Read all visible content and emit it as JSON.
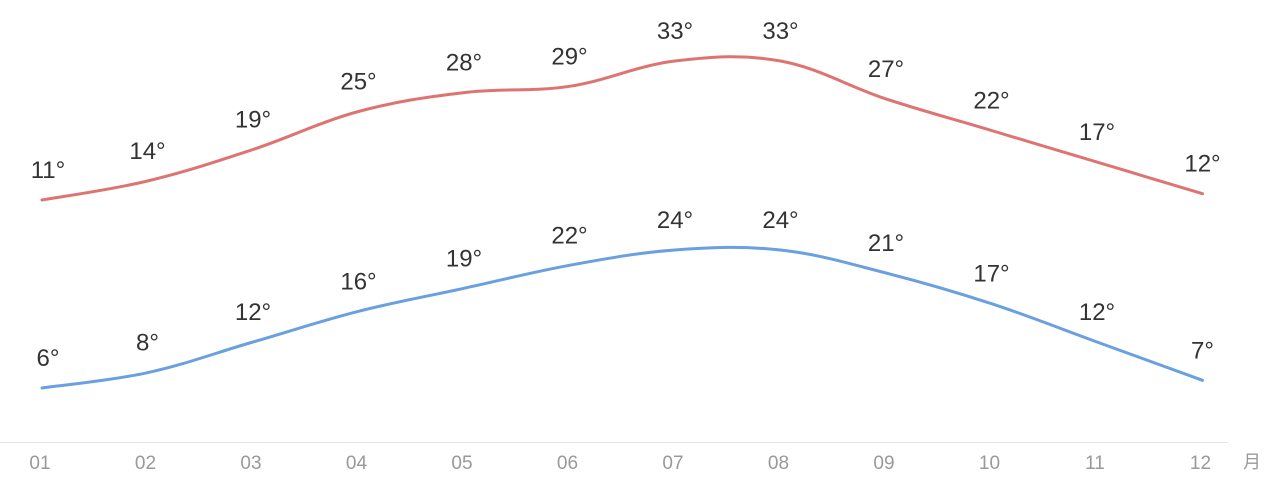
{
  "chart_data": {
    "type": "line",
    "categories": [
      "01",
      "02",
      "03",
      "04",
      "05",
      "06",
      "07",
      "08",
      "09",
      "10",
      "11",
      "12"
    ],
    "x_unit": "月",
    "value_suffix": "°",
    "series": [
      {
        "id": "high",
        "color": "#de7471",
        "values": [
          11,
          14,
          19,
          25,
          28,
          29,
          33,
          33,
          27,
          22,
          17,
          12
        ],
        "labels": [
          "11°",
          "14°",
          "19°",
          "25°",
          "28°",
          "29°",
          "33°",
          "33°",
          "27°",
          "22°",
          "17°",
          "12°"
        ]
      },
      {
        "id": "low",
        "color": "#6a9fe0",
        "values": [
          6,
          8,
          12,
          16,
          19,
          22,
          24,
          24,
          21,
          17,
          12,
          7
        ],
        "labels": [
          "6°",
          "8°",
          "12°",
          "16°",
          "19°",
          "22°",
          "24°",
          "24°",
          "21°",
          "17°",
          "12°",
          "7°"
        ]
      }
    ],
    "grid": false,
    "legend": false
  }
}
